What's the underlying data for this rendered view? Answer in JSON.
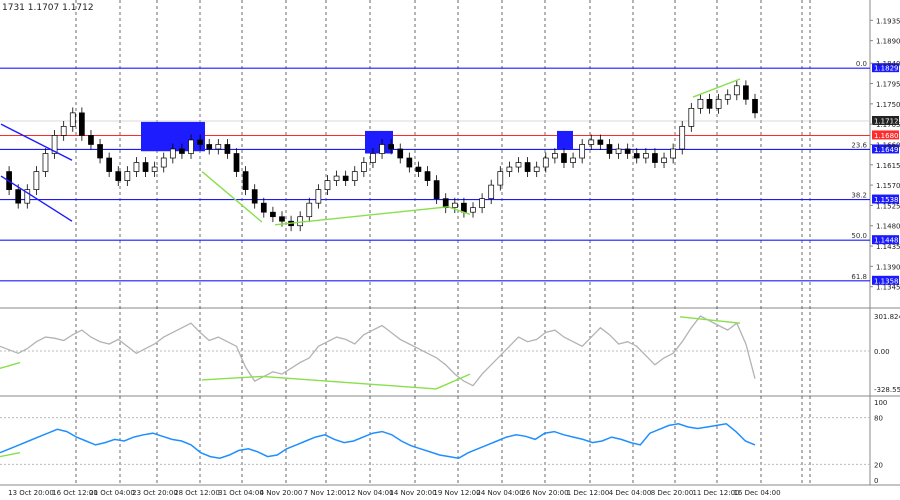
{
  "header": {
    "ohlc_text": "1731 1.1707 1.1712"
  },
  "chart_data": [
    {
      "type": "candlestick",
      "title": "",
      "ylim": [
        1.13,
        1.198
      ],
      "y_ticks": [
        "1.1935",
        "1.1890",
        "1.1840",
        "1.1795",
        "1.1750",
        "1.1705",
        "1.1660",
        "1.1615",
        "1.1570",
        "1.1525",
        "1.1480",
        "1.1435",
        "1.1390",
        "1.1345"
      ],
      "x_tick_labels": [
        "13 Oct 20:00",
        "16 Oct 12:00",
        "21 Oct 04:00",
        "23 Oct 20:00",
        "28 Oct 12:00",
        "31 Oct 04:00",
        "4 Nov 20:00",
        "7 Nov 12:00",
        "12 Nov 04:00",
        "14 Nov 20:00",
        "19 Nov 12:00",
        "24 Nov 04:00",
        "26 Nov 20:00",
        "1 Dec 12:00",
        "4 Dec 04:00",
        "8 Dec 20:00",
        "11 Dec 12:00",
        "16 Dec 04:00"
      ],
      "fib_levels": [
        {
          "label": "0.0",
          "value": "1.1829",
          "color": "#1a1aff"
        },
        {
          "label": "23.6",
          "value": "1.1649",
          "color": "#1a1aff"
        },
        {
          "label": "38.2",
          "value": "1.1538",
          "color": "#1a1aff"
        },
        {
          "label": "50.0",
          "value": "1.1448",
          "color": "#1a1aff"
        },
        {
          "label": "61.8",
          "value": "1.1358",
          "color": "#1a1aff"
        }
      ],
      "key_level": {
        "value": "1.1680",
        "color": "#ff2a2a"
      },
      "current_price": {
        "value": "1.1712",
        "color": "#222222"
      },
      "close_series": [
        1.16,
        1.156,
        1.153,
        1.156,
        1.16,
        1.164,
        1.168,
        1.17,
        1.173,
        1.168,
        1.166,
        1.163,
        1.16,
        1.158,
        1.16,
        1.162,
        1.16,
        1.161,
        1.163,
        1.165,
        1.164,
        1.167,
        1.166,
        1.165,
        1.166,
        1.164,
        1.16,
        1.156,
        1.153,
        1.151,
        1.15,
        1.149,
        1.148,
        1.15,
        1.153,
        1.156,
        1.158,
        1.159,
        1.158,
        1.16,
        1.162,
        1.164,
        1.166,
        1.165,
        1.163,
        1.161,
        1.16,
        1.158,
        1.154,
        1.152,
        1.153,
        1.151,
        1.152,
        1.154,
        1.157,
        1.16,
        1.161,
        1.162,
        1.16,
        1.161,
        1.163,
        1.164,
        1.162,
        1.163,
        1.166,
        1.167,
        1.166,
        1.164,
        1.165,
        1.164,
        1.163,
        1.164,
        1.162,
        1.163,
        1.165,
        1.17,
        1.174,
        1.176,
        1.174,
        1.176,
        1.177,
        1.179,
        1.176,
        1.173
      ],
      "trend_lines": [
        {
          "color": "#1a1aff",
          "points": [
            [
              1,
              1.1705
            ],
            [
              72,
              1.1625
            ]
          ]
        },
        {
          "color": "#1a1aff",
          "points": [
            [
              1,
              1.159
            ],
            [
              72,
              1.149
            ]
          ]
        },
        {
          "color": "#88e04a",
          "points": [
            [
              202,
              1.16
            ],
            [
              262,
              1.1488
            ]
          ]
        },
        {
          "color": "#88e04a",
          "points": [
            [
              275,
              1.1482
            ],
            [
              448,
              1.1522
            ]
          ]
        },
        {
          "color": "#88e04a",
          "points": [
            [
              448,
              1.1522
            ],
            [
              470,
              1.1505
            ]
          ]
        },
        {
          "color": "#88e04a",
          "points": [
            [
              693,
              1.1765
            ],
            [
              740,
              1.1805
            ]
          ]
        }
      ],
      "zones": [
        {
          "color": "#1c1cff",
          "from": [
            141,
            1.171
          ],
          "to": [
            205,
            1.1645
          ]
        },
        {
          "color": "#1c1cff",
          "from": [
            365,
            1.169
          ],
          "to": [
            393,
            1.164
          ]
        },
        {
          "color": "#1c1cff",
          "from": [
            557,
            1.169
          ],
          "to": [
            573,
            1.165
          ]
        }
      ]
    },
    {
      "type": "line",
      "name": "CCI",
      "y_labels": [
        "301.8242",
        "0.00",
        "-328.551"
      ],
      "series_color": "#b3b3b3",
      "values": [
        40,
        10,
        -20,
        20,
        80,
        120,
        110,
        90,
        140,
        180,
        120,
        80,
        60,
        100,
        40,
        -20,
        20,
        60,
        120,
        160,
        200,
        240,
        160,
        90,
        120,
        80,
        40,
        -140,
        -260,
        -220,
        -180,
        -200,
        -150,
        -100,
        -60,
        40,
        80,
        120,
        100,
        60,
        140,
        180,
        220,
        160,
        100,
        60,
        20,
        -20,
        -60,
        -120,
        -200,
        -260,
        -300,
        -200,
        -120,
        -40,
        40,
        120,
        80,
        100,
        160,
        180,
        120,
        80,
        40,
        120,
        200,
        140,
        60,
        80,
        40,
        -40,
        -120,
        -60,
        -20,
        80,
        200,
        302,
        260,
        220,
        180,
        240,
        60,
        -240
      ],
      "divergence_lines": [
        {
          "points": [
            [
              0,
              -150
            ],
            [
              20,
              -100
            ]
          ]
        },
        {
          "points": [
            [
              202,
              -250
            ],
            [
              262,
              -220
            ]
          ]
        },
        {
          "points": [
            [
              262,
              -220
            ],
            [
              436,
              -328
            ]
          ]
        },
        {
          "points": [
            [
              436,
              -328
            ],
            [
              470,
              -200
            ]
          ]
        },
        {
          "points": [
            [
              680,
              295
            ],
            [
              740,
              240
            ]
          ]
        }
      ]
    },
    {
      "type": "line",
      "name": "RSI",
      "y_labels": [
        "100",
        "80",
        "20",
        "0"
      ],
      "series_color": "#1f8fff",
      "values": [
        35,
        40,
        45,
        50,
        55,
        60,
        65,
        62,
        55,
        50,
        45,
        48,
        52,
        50,
        55,
        58,
        60,
        56,
        52,
        50,
        45,
        35,
        30,
        28,
        32,
        38,
        40,
        36,
        30,
        32,
        40,
        45,
        50,
        55,
        58,
        52,
        48,
        50,
        55,
        60,
        62,
        58,
        50,
        44,
        40,
        36,
        32,
        30,
        28,
        35,
        40,
        45,
        50,
        55,
        58,
        56,
        52,
        60,
        62,
        58,
        55,
        52,
        48,
        50,
        55,
        52,
        48,
        45,
        60,
        65,
        70,
        72,
        68,
        66,
        68,
        70,
        72,
        62,
        50,
        45
      ],
      "divergence_lines": [
        {
          "points": [
            [
              0,
              30
            ],
            [
              20,
              35
            ]
          ]
        }
      ]
    }
  ]
}
